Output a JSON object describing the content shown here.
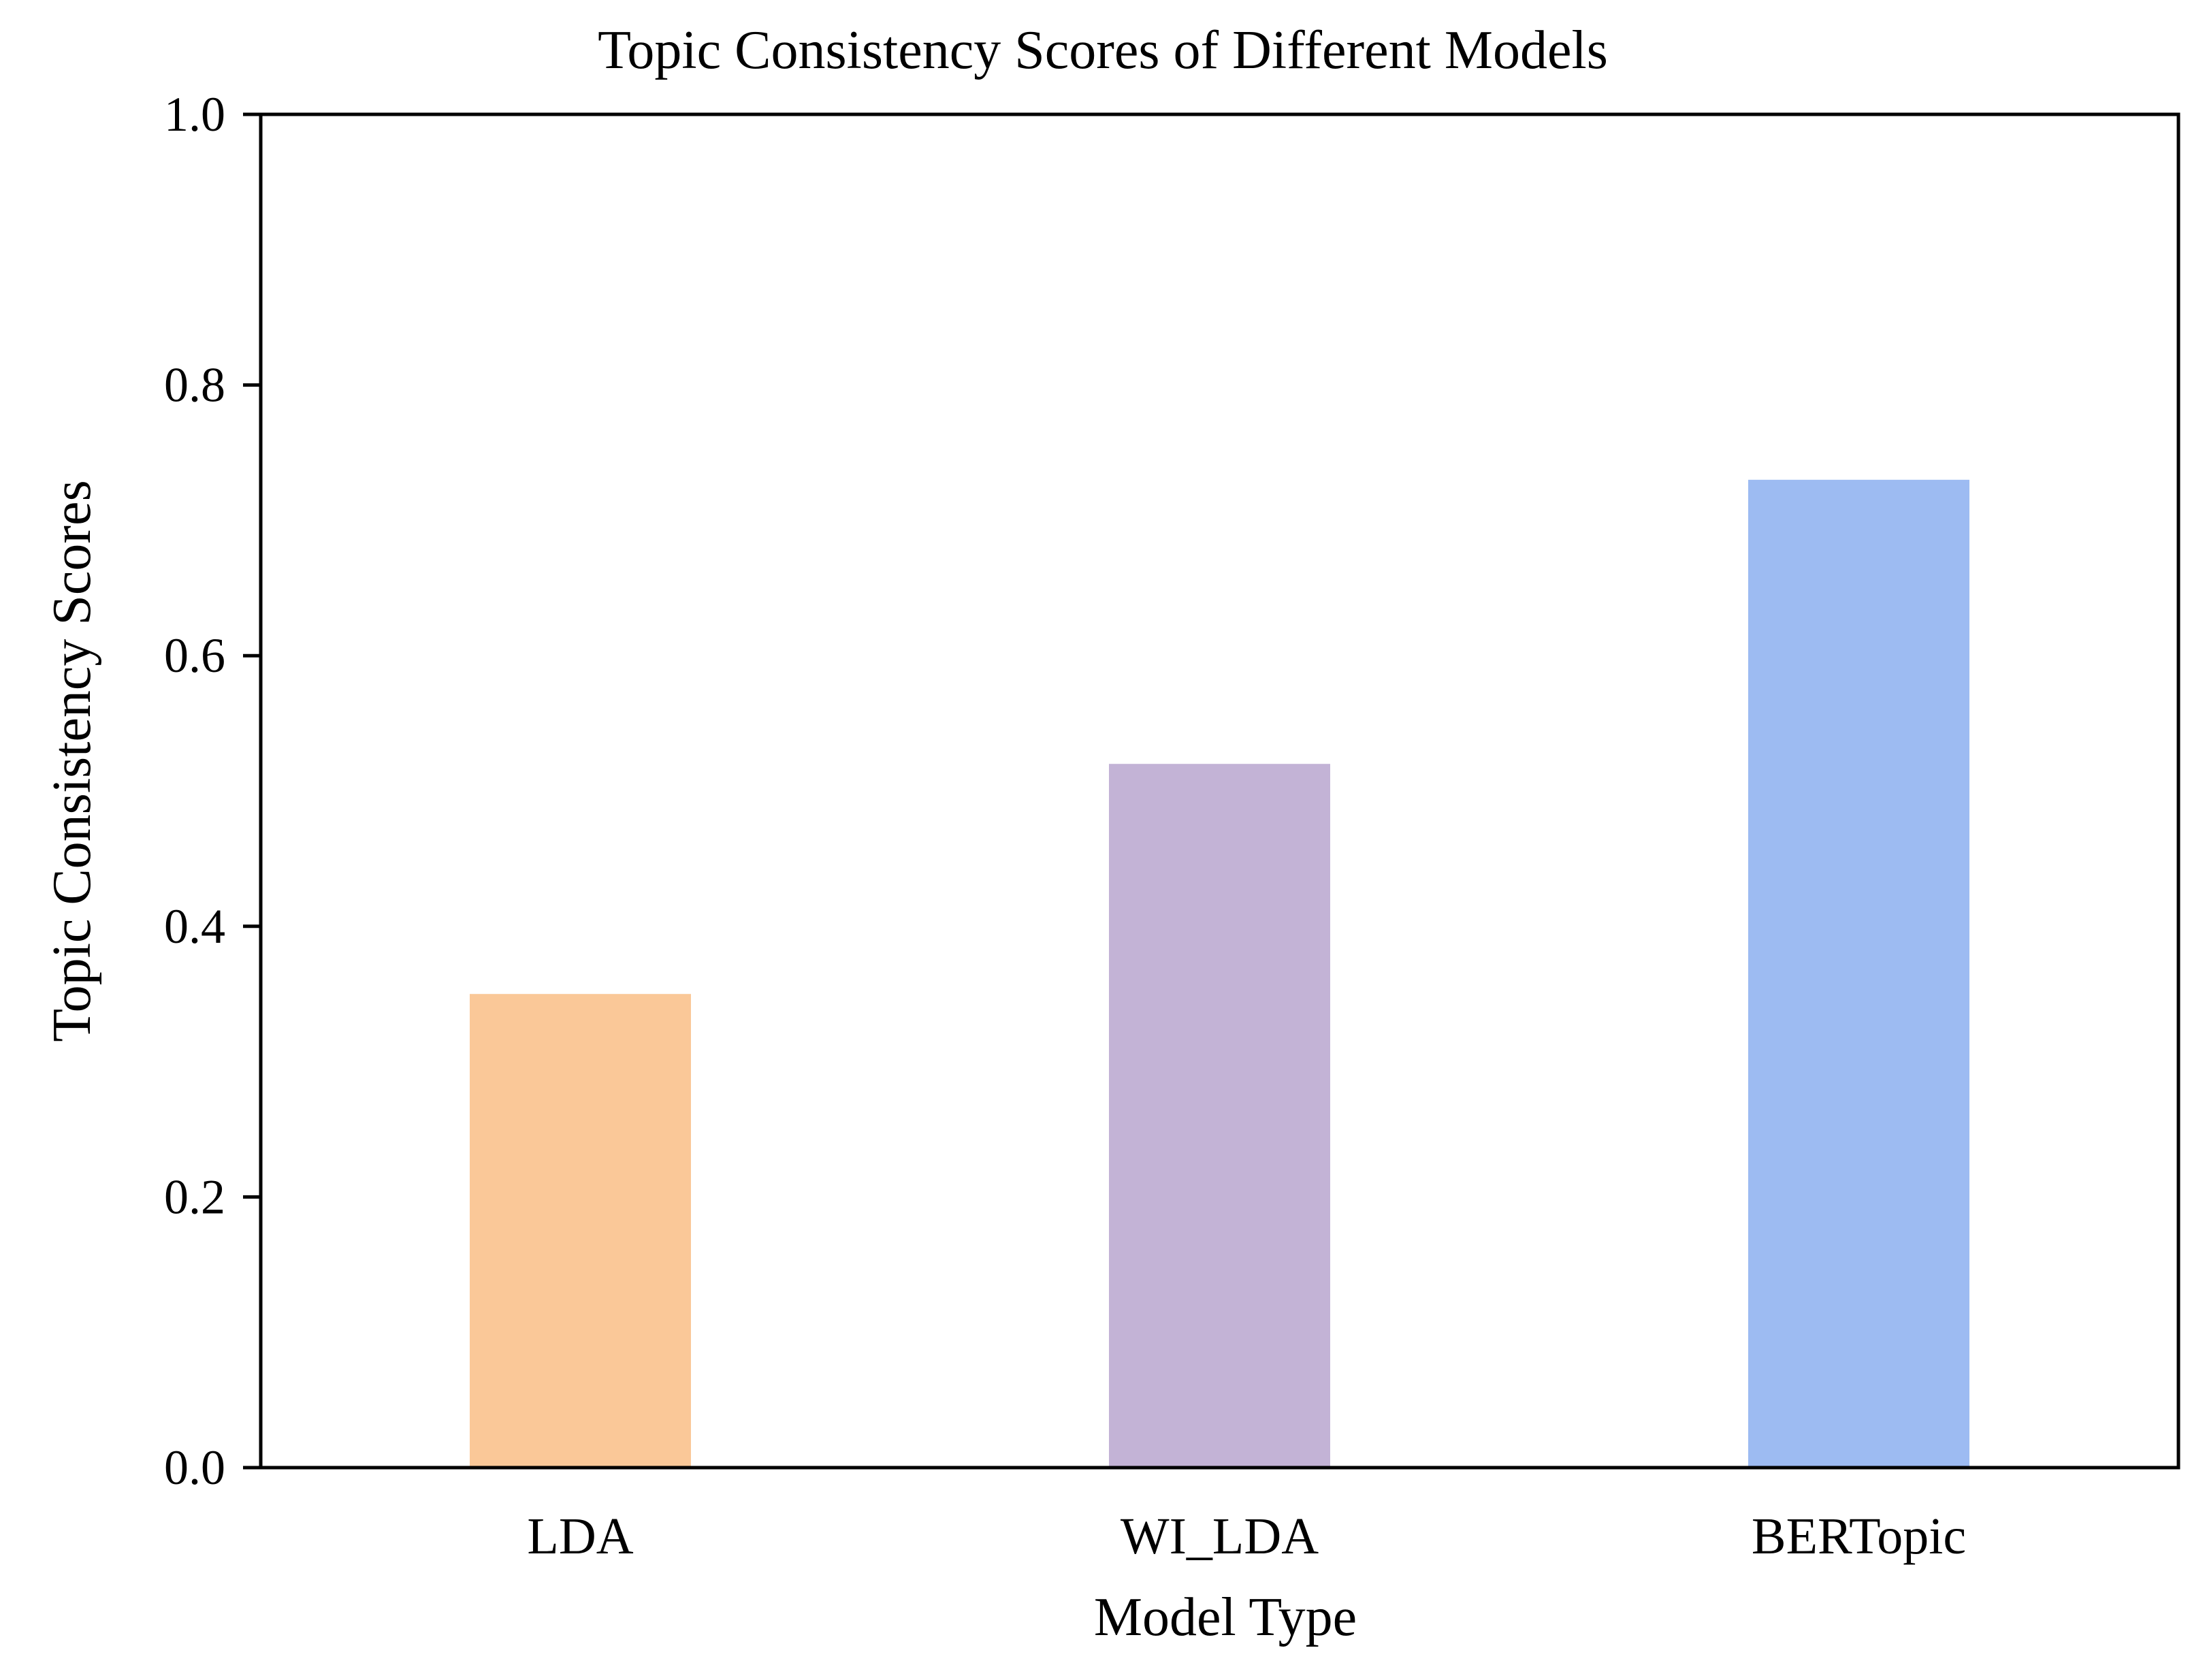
{
  "chart_data": {
    "type": "bar",
    "title": "Topic Consistency Scores of Different Models",
    "xlabel": "Model Type",
    "ylabel": "Topic Consistency Scores",
    "categories": [
      "LDA",
      "WI_LDA",
      "BERTopic"
    ],
    "values": [
      0.35,
      0.52,
      0.73
    ],
    "colors": [
      "#FAC898",
      "#C3B3D6",
      "#9DBBF2"
    ],
    "ylim": [
      0,
      1.0
    ],
    "yticks": [
      0.0,
      0.2,
      0.4,
      0.6,
      0.8,
      1.0
    ],
    "ytick_labels": [
      "0.0",
      "0.2",
      "0.4",
      "0.6",
      "0.8",
      "1.0"
    ],
    "grid": false,
    "legend": "none"
  }
}
